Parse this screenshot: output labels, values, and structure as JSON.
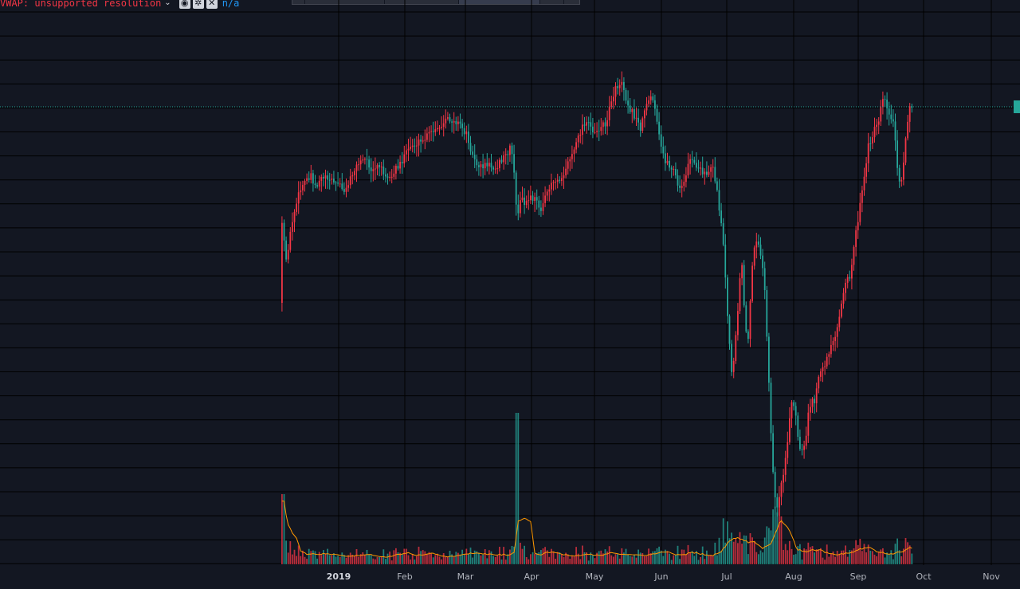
{
  "indicator": {
    "title": "VWAP: unsupported resolution",
    "caret": "⌄",
    "value": "n/a",
    "buttons": [
      {
        "icon": "eye-icon",
        "glyph": "◉"
      },
      {
        "icon": "settings-icon",
        "glyph": "✲"
      },
      {
        "icon": "close-icon",
        "glyph": "✕"
      }
    ]
  },
  "time_axis": {
    "labels": [
      "2019",
      "Feb",
      "Mar",
      "Apr",
      "May",
      "Jun",
      "Jul",
      "Aug",
      "Sep",
      "Oct",
      "Nov"
    ]
  },
  "colors": {
    "background": "#131722",
    "grid": "#000000",
    "up": "#f23645",
    "down": "#26a69a",
    "volume_ma": "#ff9800",
    "price_line": "#26a69a"
  },
  "chart_data": {
    "type": "candlestick",
    "title": "",
    "xlabel": "",
    "ylabel": "",
    "x_ticks": [
      "2019",
      "Feb",
      "Mar",
      "Apr",
      "May",
      "Jun",
      "Jul",
      "Aug",
      "Sep",
      "Oct",
      "Nov"
    ],
    "grid": true,
    "last_price_line": true
  }
}
